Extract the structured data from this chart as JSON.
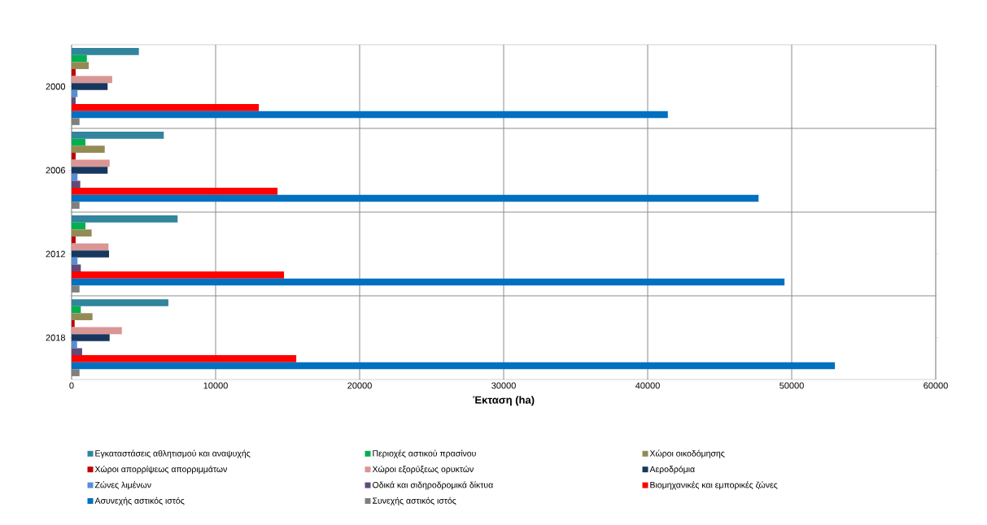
{
  "chart_data": {
    "type": "bar",
    "orientation": "horizontal",
    "xlabel": "Έκταση (ha)",
    "categories": [
      "2000",
      "2006",
      "2012",
      "2018"
    ],
    "xlim": [
      0,
      60000
    ],
    "xticks": [
      0,
      10000,
      20000,
      30000,
      40000,
      50000,
      60000
    ],
    "grid": true,
    "legend": "bottom",
    "series": [
      {
        "name": "Εγκαταστάσεις αθλητισμού και αναψυχής",
        "color": "#31859c",
        "values": [
          4670,
          6400,
          7360,
          6720
        ]
      },
      {
        "name": "Περιοχές αστικού πρασίνου",
        "color": "#00b050",
        "values": [
          1060,
          960,
          960,
          640
        ]
      },
      {
        "name": "Χώροι οικοδόμησης",
        "color": "#948a54",
        "values": [
          1190,
          2300,
          1390,
          1450
        ]
      },
      {
        "name": "Χώροι απορρίψεως απορριμμάτων",
        "color": "#c00000",
        "values": [
          280,
          280,
          280,
          210
        ]
      },
      {
        "name": "Χώροι εξορύξεως ορυκτών",
        "color": "#d99694",
        "values": [
          2820,
          2640,
          2560,
          3490
        ]
      },
      {
        "name": "Αεροδρόμια",
        "color": "#17375e",
        "values": [
          2500,
          2500,
          2600,
          2640
        ]
      },
      {
        "name": "Ζώνες λιμένων",
        "color": "#558ed5",
        "values": [
          410,
          410,
          410,
          380
        ]
      },
      {
        "name": "Οδικά και σιδηροδρομικά δίκτυα",
        "color": "#604a7b",
        "values": [
          280,
          600,
          640,
          730
        ]
      },
      {
        "name": "Βιομηχανικές και εμπορικές ζώνες",
        "color": "#ff0000",
        "values": [
          13000,
          14300,
          14750,
          15600
        ]
      },
      {
        "name": "Ασυνεχής αστικός ιστός",
        "color": "#0070c0",
        "values": [
          41400,
          47700,
          49500,
          53000
        ]
      },
      {
        "name": "Συνεχής αστικός ιστός",
        "color": "#7f7f7f",
        "values": [
          550,
          550,
          550,
          550
        ]
      }
    ]
  }
}
